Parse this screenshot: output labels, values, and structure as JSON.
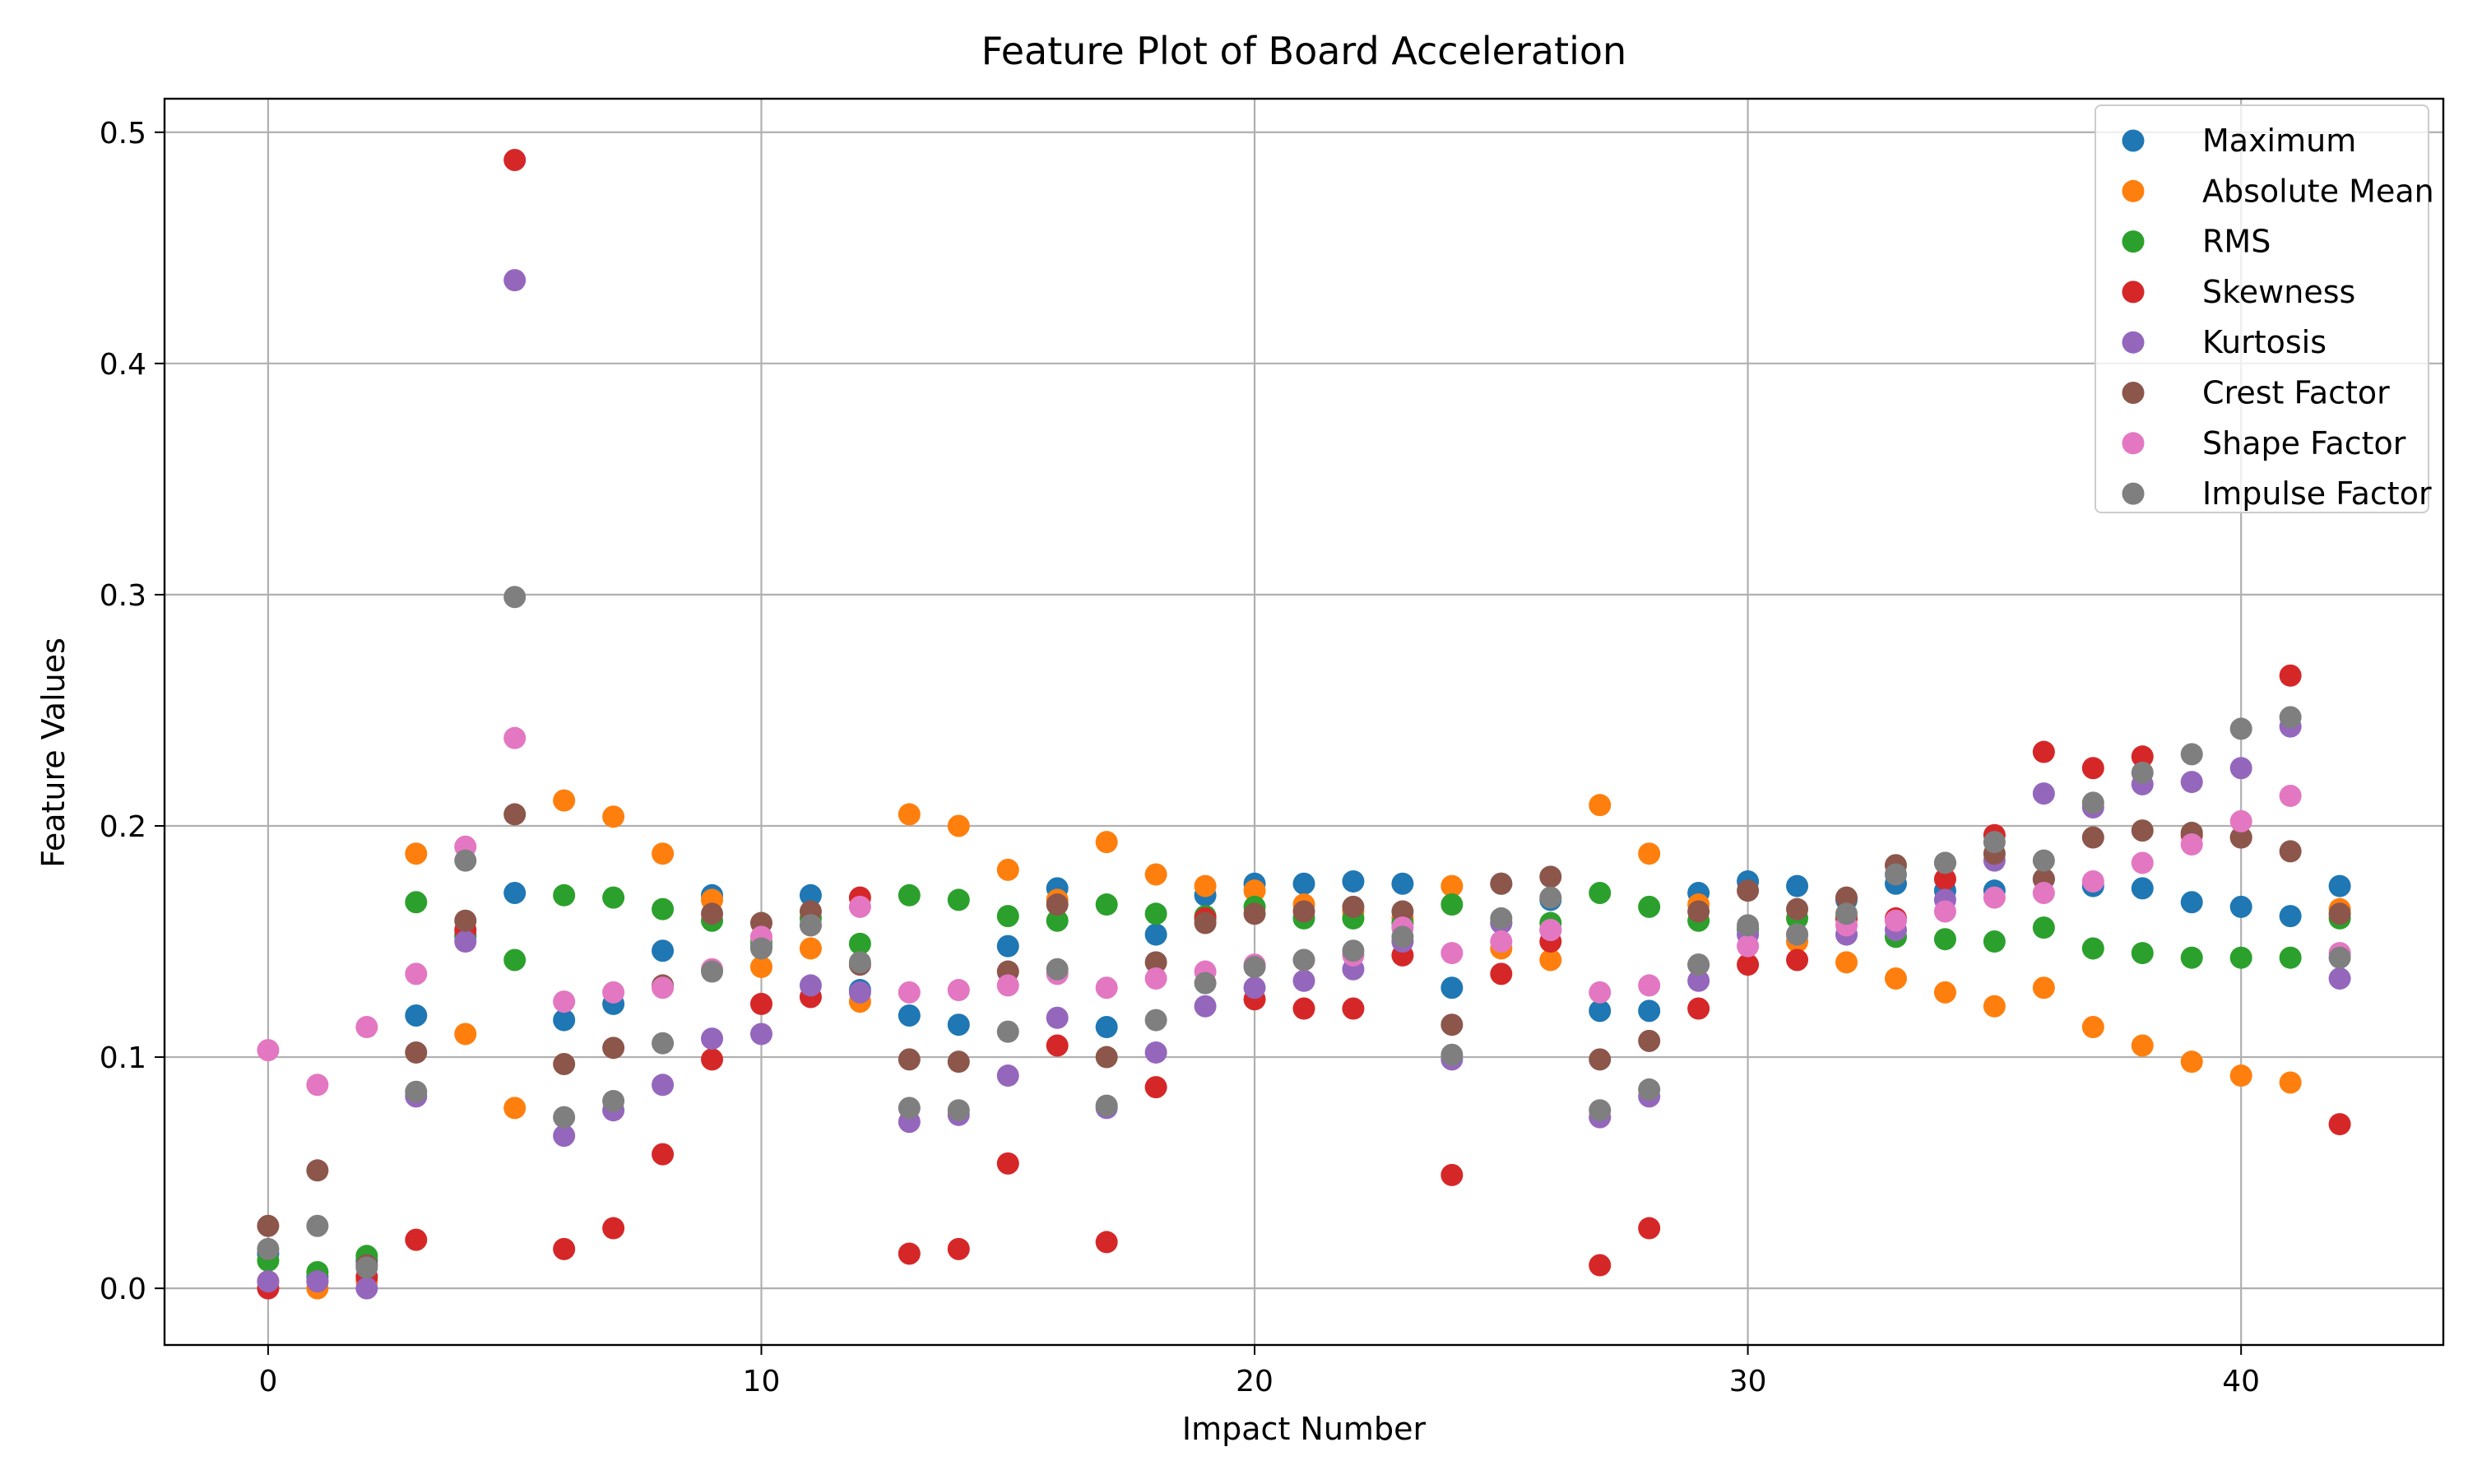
{
  "chart_data": {
    "type": "scatter",
    "title": "Feature Plot of Board Acceleration",
    "xlabel": "Impact Number",
    "ylabel": "Feature Values",
    "xlim": [
      -2.1,
      44.1
    ],
    "ylim": [
      -0.0245,
      0.5145
    ],
    "xticks": [
      0,
      10,
      20,
      30,
      40
    ],
    "xtick_labels": [
      "0",
      "10",
      "20",
      "30",
      "40"
    ],
    "yticks": [
      0.0,
      0.1,
      0.2,
      0.3,
      0.4,
      0.5
    ],
    "ytick_labels": [
      "0.0",
      "0.1",
      "0.2",
      "0.3",
      "0.4",
      "0.5"
    ],
    "grid": true,
    "legend_position": "upper right",
    "x": [
      0,
      1,
      2,
      3,
      4,
      5,
      6,
      7,
      8,
      9,
      10,
      11,
      12,
      13,
      14,
      15,
      16,
      17,
      18,
      19,
      20,
      21,
      22,
      23,
      24,
      25,
      26,
      27,
      28,
      29,
      30,
      31,
      32,
      33,
      34,
      35,
      36,
      37,
      38,
      39,
      40,
      41,
      42
    ],
    "series": [
      {
        "name": "Maximum",
        "color": "#1f77b4",
        "values": [
          0.015,
          0.005,
          0.012,
          0.118,
          0.152,
          0.171,
          0.116,
          0.123,
          0.146,
          0.17,
          0.148,
          0.17,
          0.129,
          0.118,
          0.114,
          0.148,
          0.173,
          0.113,
          0.153,
          0.17,
          0.175,
          0.175,
          0.176,
          0.175,
          0.13,
          0.175,
          0.168,
          0.12,
          0.12,
          0.171,
          0.176,
          0.174,
          0.168,
          0.175,
          0.172,
          0.172,
          0.177,
          0.174,
          0.173,
          0.167,
          0.165,
          0.161,
          0.174
        ]
      },
      {
        "name": "Absolute Mean",
        "color": "#ff7f0e",
        "values": [
          0.003,
          0.0,
          0.003,
          0.188,
          0.11,
          0.078,
          0.211,
          0.204,
          0.188,
          0.168,
          0.139,
          0.147,
          0.124,
          0.205,
          0.2,
          0.181,
          0.168,
          0.193,
          0.179,
          0.174,
          0.172,
          0.166,
          0.163,
          0.16,
          0.174,
          0.147,
          0.142,
          0.209,
          0.188,
          0.166,
          0.156,
          0.15,
          0.141,
          0.134,
          0.128,
          0.122,
          0.13,
          0.113,
          0.105,
          0.098,
          0.092,
          0.089,
          0.164
        ]
      },
      {
        "name": "RMS",
        "color": "#2ca02c",
        "values": [
          0.012,
          0.007,
          0.014,
          0.167,
          0.153,
          0.142,
          0.17,
          0.169,
          0.164,
          0.159,
          0.15,
          0.16,
          0.149,
          0.17,
          0.168,
          0.161,
          0.159,
          0.166,
          0.162,
          0.161,
          0.165,
          0.16,
          0.16,
          0.158,
          0.166,
          0.158,
          0.158,
          0.171,
          0.165,
          0.159,
          0.155,
          0.16,
          0.16,
          0.152,
          0.151,
          0.15,
          0.156,
          0.147,
          0.145,
          0.143,
          0.143,
          0.143,
          0.16
        ]
      },
      {
        "name": "Skewness",
        "color": "#d62728",
        "values": [
          0.0,
          0.003,
          0.005,
          0.021,
          0.155,
          0.488,
          0.017,
          0.026,
          0.058,
          0.099,
          0.123,
          0.126,
          0.169,
          0.015,
          0.017,
          0.054,
          0.105,
          0.02,
          0.087,
          0.16,
          0.125,
          0.121,
          0.121,
          0.144,
          0.049,
          0.136,
          0.15,
          0.01,
          0.026,
          0.121,
          0.14,
          0.142,
          0.16,
          0.16,
          0.177,
          0.196,
          0.232,
          0.225,
          0.23,
          0.196,
          0.195,
          0.265,
          0.071
        ]
      },
      {
        "name": "Kurtosis",
        "color": "#9467bd",
        "values": [
          0.003,
          0.003,
          0.0,
          0.083,
          0.15,
          0.436,
          0.066,
          0.077,
          0.088,
          0.108,
          0.11,
          0.131,
          0.128,
          0.072,
          0.075,
          0.092,
          0.117,
          0.078,
          0.102,
          0.122,
          0.13,
          0.133,
          0.138,
          0.15,
          0.099,
          0.158,
          0.155,
          0.074,
          0.083,
          0.133,
          0.153,
          0.153,
          0.153,
          0.155,
          0.168,
          0.185,
          0.214,
          0.208,
          0.218,
          0.219,
          0.225,
          0.243,
          0.134
        ]
      },
      {
        "name": "Crest Factor",
        "color": "#8c564b",
        "values": [
          0.027,
          0.051,
          0.01,
          0.102,
          0.159,
          0.205,
          0.097,
          0.104,
          0.131,
          0.162,
          0.158,
          0.163,
          0.14,
          0.099,
          0.098,
          0.137,
          0.166,
          0.1,
          0.141,
          0.158,
          0.162,
          0.163,
          0.165,
          0.163,
          0.114,
          0.175,
          0.178,
          0.099,
          0.107,
          0.163,
          0.172,
          0.164,
          0.169,
          0.183,
          0.184,
          0.188,
          0.177,
          0.195,
          0.198,
          0.197,
          0.195,
          0.189,
          0.162
        ]
      },
      {
        "name": "Shape Factor",
        "color": "#e377c2",
        "values": [
          0.103,
          0.088,
          0.113,
          0.136,
          0.191,
          0.238,
          0.124,
          0.128,
          0.13,
          0.138,
          0.152,
          0.157,
          0.165,
          0.128,
          0.129,
          0.131,
          0.136,
          0.13,
          0.134,
          0.137,
          0.14,
          0.142,
          0.144,
          0.156,
          0.145,
          0.15,
          0.155,
          0.128,
          0.131,
          0.14,
          0.148,
          0.153,
          0.157,
          0.159,
          0.163,
          0.169,
          0.171,
          0.176,
          0.184,
          0.192,
          0.202,
          0.213,
          0.145
        ]
      },
      {
        "name": "Impulse Factor",
        "color": "#7f7f7f",
        "values": [
          0.017,
          0.027,
          0.009,
          0.085,
          0.185,
          0.299,
          0.074,
          0.081,
          0.106,
          0.137,
          0.147,
          0.157,
          0.141,
          0.078,
          0.077,
          0.111,
          0.138,
          0.079,
          0.116,
          0.132,
          0.139,
          0.142,
          0.146,
          0.152,
          0.101,
          0.16,
          0.169,
          0.077,
          0.086,
          0.14,
          0.157,
          0.153,
          0.162,
          0.179,
          0.184,
          0.193,
          0.185,
          0.21,
          0.223,
          0.231,
          0.242,
          0.247,
          0.143
        ]
      }
    ]
  }
}
